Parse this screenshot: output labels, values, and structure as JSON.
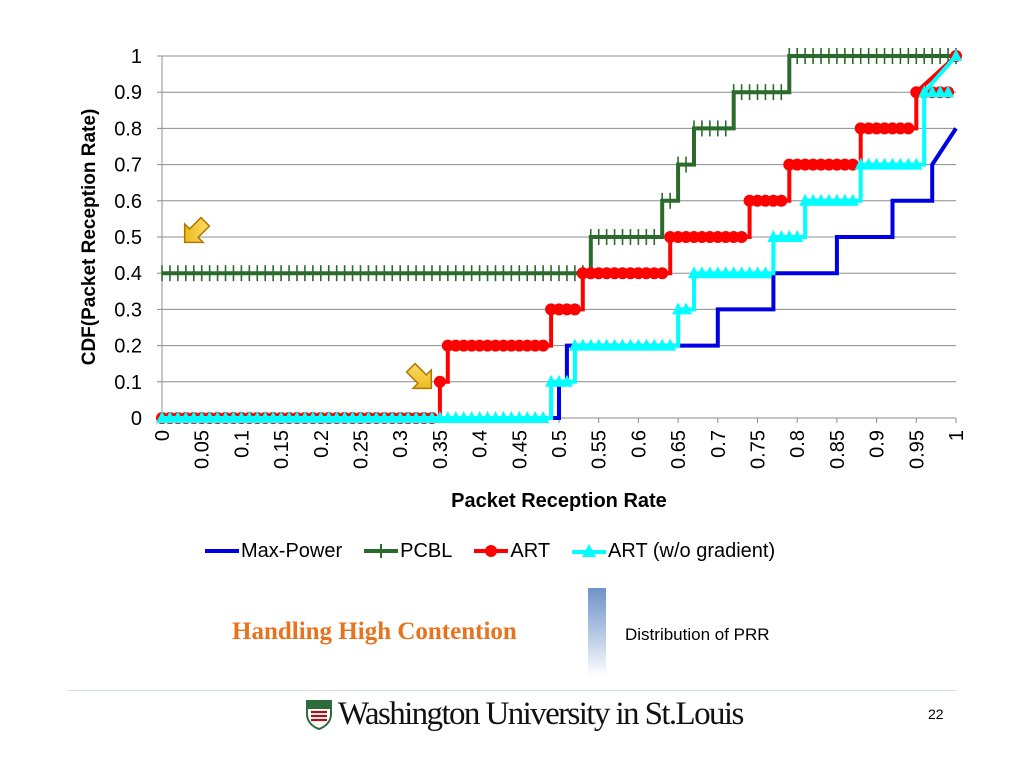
{
  "chart_data": {
    "type": "line",
    "title": "",
    "xlabel": "Packet Reception Rate",
    "ylabel": "CDF(Packet Reception Rate)",
    "xlim": [
      0,
      1
    ],
    "ylim": [
      0,
      1
    ],
    "x_ticks": [
      "0",
      "0.05",
      "0.1",
      "0.15",
      "0.2",
      "0.25",
      "0.3",
      "0.35",
      "0.4",
      "0.45",
      "0.5",
      "0.55",
      "0.6",
      "0.65",
      "0.7",
      "0.75",
      "0.8",
      "0.85",
      "0.9",
      "0.95",
      "1"
    ],
    "y_ticks": [
      "0",
      "0.1",
      "0.2",
      "0.3",
      "0.4",
      "0.5",
      "0.6",
      "0.7",
      "0.8",
      "0.9",
      "1"
    ],
    "grid": "horizontal",
    "legend_position": "bottom",
    "series": [
      {
        "name": "Max-Power",
        "color": "#0000e6",
        "marker": "none",
        "x": [
          0,
          0.5,
          0.5,
          0.51,
          0.51,
          0.7,
          0.7,
          0.77,
          0.77,
          0.85,
          0.85,
          0.92,
          0.92,
          0.97,
          0.97,
          1
        ],
        "y": [
          0,
          0,
          0.1,
          0.1,
          0.2,
          0.2,
          0.3,
          0.3,
          0.4,
          0.4,
          0.5,
          0.5,
          0.6,
          0.6,
          0.7,
          0.8
        ]
      },
      {
        "name": "PCBL",
        "color": "#2a6a2a",
        "marker": "plus",
        "x": [
          0,
          0.54,
          0.54,
          0.63,
          0.63,
          0.65,
          0.65,
          0.67,
          0.67,
          0.72,
          0.72,
          0.79,
          0.79,
          0.8,
          0.8,
          1
        ],
        "y": [
          0.4,
          0.4,
          0.5,
          0.5,
          0.6,
          0.6,
          0.7,
          0.7,
          0.8,
          0.8,
          0.9,
          0.9,
          1,
          1,
          1,
          1
        ]
      },
      {
        "name": "ART",
        "color": "#ff0000",
        "marker": "circle",
        "x": [
          0,
          0.35,
          0.35,
          0.36,
          0.36,
          0.49,
          0.49,
          0.53,
          0.53,
          0.64,
          0.64,
          0.74,
          0.74,
          0.79,
          0.79,
          0.88,
          0.88,
          0.95,
          0.95,
          1
        ],
        "y": [
          0,
          0,
          0.1,
          0.1,
          0.2,
          0.2,
          0.3,
          0.3,
          0.4,
          0.4,
          0.5,
          0.5,
          0.6,
          0.6,
          0.7,
          0.7,
          0.8,
          0.8,
          0.9,
          1
        ]
      },
      {
        "name": "ART (w/o gradient)",
        "color": "#00ffff",
        "marker": "triangle",
        "x": [
          0,
          0.49,
          0.49,
          0.52,
          0.52,
          0.65,
          0.65,
          0.67,
          0.67,
          0.77,
          0.77,
          0.81,
          0.81,
          0.88,
          0.88,
          0.96,
          0.96,
          1
        ],
        "y": [
          0,
          0,
          0.1,
          0.1,
          0.2,
          0.2,
          0.3,
          0.3,
          0.4,
          0.4,
          0.5,
          0.5,
          0.6,
          0.6,
          0.7,
          0.7,
          0.9,
          1
        ]
      }
    ]
  },
  "footer": {
    "title": "Handling High Contention",
    "subtitle": "Distribution of PRR",
    "brand": "Washington University in St.Louis",
    "page_number": "22",
    "title_color": "#e8731e"
  }
}
